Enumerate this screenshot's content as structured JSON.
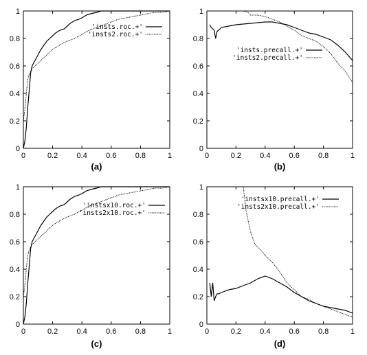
{
  "chart_data": [
    {
      "type": "line",
      "caption": "(a)",
      "xlim": [
        0,
        1
      ],
      "ylim": [
        0,
        1
      ],
      "xticks": [
        "0",
        "0.2",
        "0.4",
        "0.6",
        "0.8",
        "1"
      ],
      "yticks": [
        "0",
        "0.2",
        "0.4",
        "0.6",
        "0.8",
        "1"
      ],
      "legend_position": "top-right",
      "grid": false,
      "series": [
        {
          "name": "'insts.roc.+'",
          "style": "solid",
          "x": [
            0,
            0.01,
            0.02,
            0.03,
            0.04,
            0.05,
            0.06,
            0.08,
            0.1,
            0.12,
            0.14,
            0.16,
            0.18,
            0.2,
            0.22,
            0.25,
            0.28,
            0.3,
            0.32,
            0.35,
            0.38,
            0.4,
            0.43,
            0.46,
            0.5,
            0.53,
            0.56,
            1
          ],
          "y": [
            0,
            0.05,
            0.15,
            0.3,
            0.42,
            0.55,
            0.6,
            0.64,
            0.68,
            0.72,
            0.75,
            0.78,
            0.8,
            0.82,
            0.84,
            0.86,
            0.87,
            0.89,
            0.91,
            0.93,
            0.94,
            0.95,
            0.97,
            0.98,
            0.99,
            1.0,
            1.0,
            1.0
          ]
        },
        {
          "name": "'insts2.roc.+'",
          "style": "dotted",
          "x": [
            0,
            0.01,
            0.02,
            0.03,
            0.04,
            0.05,
            0.06,
            0.08,
            0.1,
            0.12,
            0.15,
            0.18,
            0.2,
            0.23,
            0.26,
            0.3,
            0.35,
            0.4,
            0.45,
            0.5,
            0.55,
            0.6,
            0.65,
            0.7,
            0.75,
            0.8,
            0.85,
            0.9,
            0.95,
            1
          ],
          "y": [
            0.2,
            0.28,
            0.4,
            0.5,
            0.54,
            0.56,
            0.58,
            0.6,
            0.62,
            0.64,
            0.67,
            0.7,
            0.72,
            0.74,
            0.76,
            0.78,
            0.8,
            0.83,
            0.86,
            0.88,
            0.9,
            0.92,
            0.94,
            0.95,
            0.96,
            0.97,
            0.98,
            0.99,
            0.99,
            1.0
          ]
        }
      ]
    },
    {
      "type": "line",
      "caption": "(b)",
      "xlim": [
        0,
        1
      ],
      "ylim": [
        0,
        1
      ],
      "xticks": [
        "0",
        "0.2",
        "0.4",
        "0.6",
        "0.8",
        "1"
      ],
      "yticks": [
        "0",
        "0.2",
        "0.4",
        "0.6",
        "0.8",
        "1"
      ],
      "legend_position": "center-right",
      "grid": false,
      "series": [
        {
          "name": "'insts.precall.+'",
          "style": "solid",
          "x": [
            0.02,
            0.03,
            0.05,
            0.06,
            0.07,
            0.08,
            0.1,
            0.15,
            0.2,
            0.3,
            0.4,
            0.45,
            0.5,
            0.55,
            0.6,
            0.65,
            0.7,
            0.75,
            0.8,
            0.85,
            0.9,
            0.95,
            1.0
          ],
          "y": [
            0.9,
            0.88,
            0.86,
            0.8,
            0.85,
            0.86,
            0.88,
            0.89,
            0.9,
            0.91,
            0.92,
            0.92,
            0.91,
            0.9,
            0.88,
            0.86,
            0.84,
            0.83,
            0.81,
            0.79,
            0.75,
            0.7,
            0.64
          ]
        },
        {
          "name": "'insts2.precall.+'",
          "style": "dotted",
          "x": [
            0.25,
            0.28,
            0.3,
            0.35,
            0.4,
            0.45,
            0.5,
            0.55,
            0.6,
            0.65,
            0.7,
            0.75,
            0.8,
            0.85,
            0.9,
            0.95,
            1.0
          ],
          "y": [
            1.0,
            0.99,
            0.97,
            0.97,
            0.96,
            0.94,
            0.92,
            0.89,
            0.86,
            0.82,
            0.8,
            0.78,
            0.74,
            0.69,
            0.62,
            0.56,
            0.48
          ]
        }
      ]
    },
    {
      "type": "line",
      "caption": "(c)",
      "xlim": [
        0,
        1
      ],
      "ylim": [
        0,
        1
      ],
      "xticks": [
        "0",
        "0.2",
        "0.4",
        "0.6",
        "0.8",
        "1"
      ],
      "yticks": [
        "0",
        "0.2",
        "0.4",
        "0.6",
        "0.8",
        "1"
      ],
      "legend_position": "top-right",
      "grid": false,
      "series": [
        {
          "name": "'instsx10.roc.+'",
          "style": "solid",
          "x": [
            0,
            0.01,
            0.02,
            0.03,
            0.04,
            0.05,
            0.06,
            0.08,
            0.1,
            0.12,
            0.14,
            0.16,
            0.18,
            0.2,
            0.22,
            0.25,
            0.28,
            0.3,
            0.32,
            0.35,
            0.38,
            0.4,
            0.43,
            0.46,
            0.5,
            0.53,
            0.56,
            1
          ],
          "y": [
            0,
            0.05,
            0.15,
            0.3,
            0.42,
            0.55,
            0.6,
            0.64,
            0.68,
            0.72,
            0.75,
            0.78,
            0.8,
            0.82,
            0.84,
            0.86,
            0.87,
            0.89,
            0.91,
            0.93,
            0.94,
            0.95,
            0.97,
            0.98,
            0.99,
            1.0,
            1.0,
            1.0
          ]
        },
        {
          "name": "'insts2x10.roc.+'",
          "style": "dotted",
          "x": [
            0,
            0.01,
            0.02,
            0.03,
            0.04,
            0.05,
            0.06,
            0.08,
            0.1,
            0.12,
            0.15,
            0.18,
            0.2,
            0.23,
            0.26,
            0.3,
            0.35,
            0.4,
            0.45,
            0.5,
            0.55,
            0.6,
            0.65,
            0.7,
            0.75,
            0.8,
            0.85,
            0.9,
            0.95,
            1
          ],
          "y": [
            0.2,
            0.28,
            0.4,
            0.5,
            0.54,
            0.56,
            0.58,
            0.6,
            0.62,
            0.64,
            0.67,
            0.7,
            0.72,
            0.74,
            0.76,
            0.78,
            0.8,
            0.83,
            0.86,
            0.88,
            0.9,
            0.92,
            0.94,
            0.95,
            0.96,
            0.97,
            0.98,
            0.99,
            0.99,
            1.0
          ]
        }
      ]
    },
    {
      "type": "line",
      "caption": "(d)",
      "xlim": [
        0,
        1
      ],
      "ylim": [
        0,
        1
      ],
      "xticks": [
        "0",
        "0.2",
        "0.4",
        "0.6",
        "0.8",
        "1"
      ],
      "yticks": [
        "0",
        "0.2",
        "0.4",
        "0.6",
        "0.8",
        "1"
      ],
      "legend_position": "top-right",
      "grid": false,
      "series": [
        {
          "name": "'instsx10.precall.+'",
          "style": "solid",
          "x": [
            0.02,
            0.03,
            0.04,
            0.05,
            0.06,
            0.07,
            0.08,
            0.1,
            0.15,
            0.2,
            0.25,
            0.3,
            0.35,
            0.4,
            0.45,
            0.5,
            0.55,
            0.6,
            0.65,
            0.7,
            0.75,
            0.8,
            0.85,
            0.9,
            0.95,
            1.0
          ],
          "y": [
            0.3,
            0.2,
            0.3,
            0.17,
            0.2,
            0.22,
            0.22,
            0.23,
            0.25,
            0.26,
            0.28,
            0.3,
            0.33,
            0.35,
            0.33,
            0.3,
            0.27,
            0.23,
            0.2,
            0.17,
            0.15,
            0.13,
            0.12,
            0.11,
            0.1,
            0.08
          ]
        },
        {
          "name": "'insts2x10.precall.+'",
          "style": "dotted",
          "x": [
            0.25,
            0.27,
            0.3,
            0.33,
            0.36,
            0.4,
            0.45,
            0.5,
            0.55,
            0.6,
            0.65,
            0.7,
            0.75,
            0.8,
            0.85,
            0.9,
            0.95,
            1.0
          ],
          "y": [
            1.0,
            0.82,
            0.67,
            0.58,
            0.55,
            0.5,
            0.45,
            0.38,
            0.3,
            0.25,
            0.2,
            0.18,
            0.15,
            0.13,
            0.11,
            0.09,
            0.07,
            0.05
          ]
        }
      ]
    }
  ]
}
